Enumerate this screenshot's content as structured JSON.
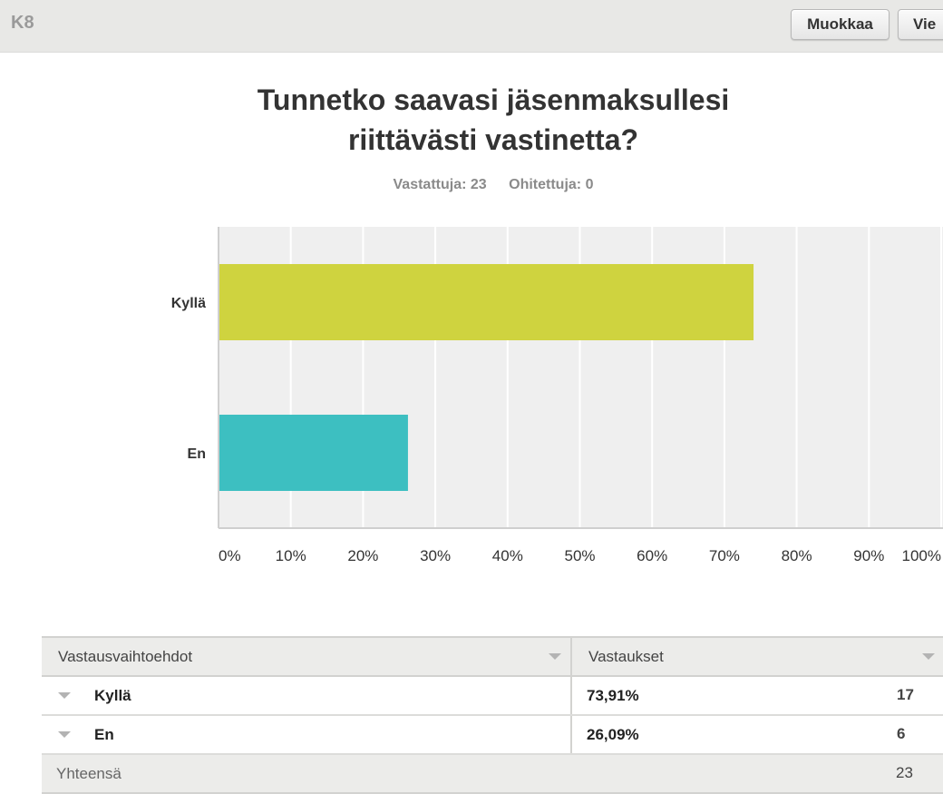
{
  "header": {
    "question_id": "K8",
    "edit_label": "Muokkaa",
    "export_label": "Vie"
  },
  "question": {
    "title_line1": "Tunnetko saavasi jäsenmaksullesi",
    "title_line2": "riittävästi vastinetta?",
    "answered": "Vastattuja: 23",
    "skipped": "Ohitettuja: 0"
  },
  "chart_data": {
    "type": "bar",
    "orientation": "horizontal",
    "categories": [
      "Kyllä",
      "En"
    ],
    "values": [
      73.91,
      26.09
    ],
    "colors": [
      "#cfd33f",
      "#3dbfc1"
    ],
    "x_ticks": [
      "0%",
      "10%",
      "20%",
      "30%",
      "40%",
      "50%",
      "60%",
      "70%",
      "80%",
      "90%",
      "100%"
    ],
    "xlim": [
      0,
      100
    ],
    "grid": true,
    "background": "#efefef"
  },
  "table": {
    "headers": [
      "Vastausvaihtoehdot",
      "Vastaukset"
    ],
    "rows": [
      {
        "choice": "Kyllä",
        "percent": "73,91%",
        "count": "17"
      },
      {
        "choice": "En",
        "percent": "26,09%",
        "count": "6"
      }
    ],
    "total_label": "Yhteensä",
    "total_count": "23"
  }
}
